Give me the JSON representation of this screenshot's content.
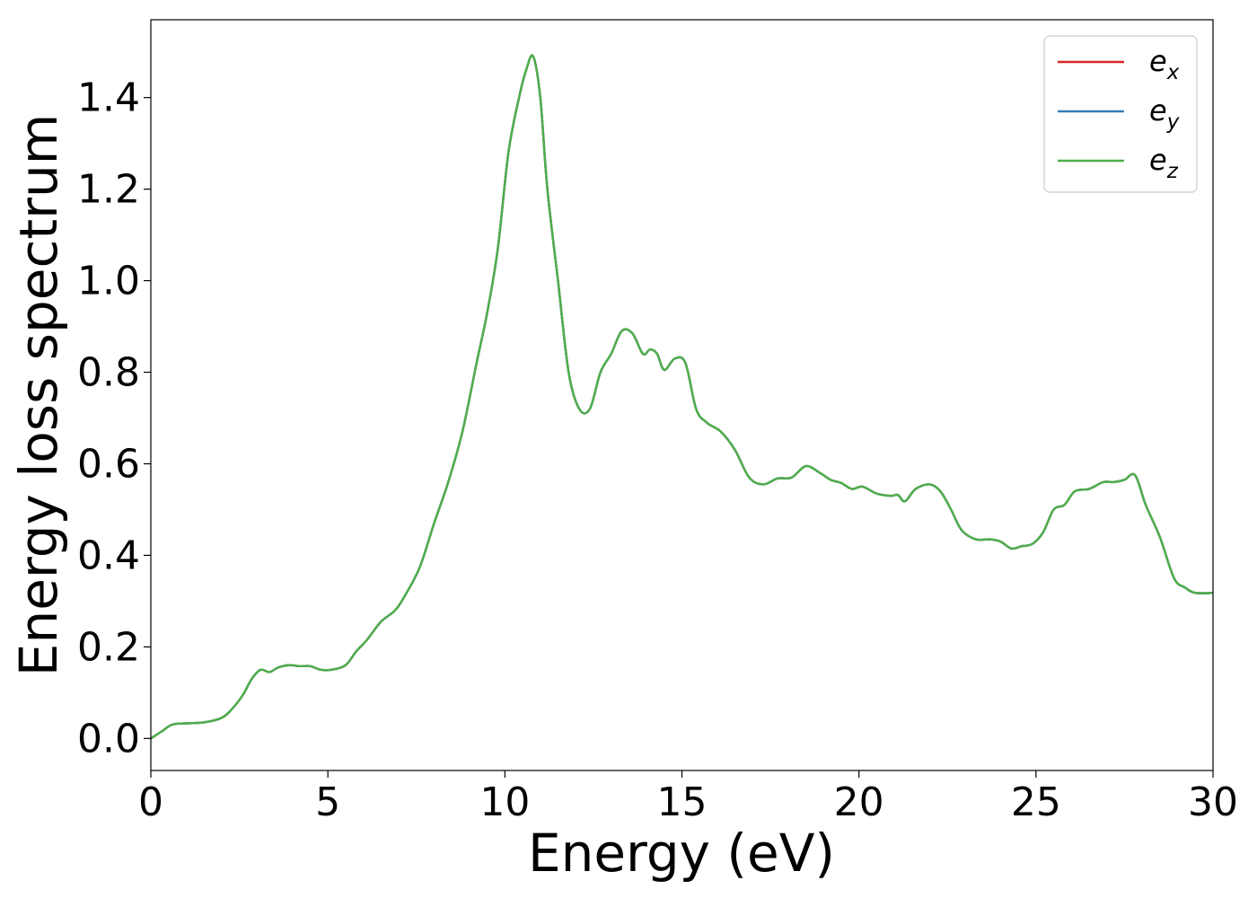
{
  "chart_data": {
    "type": "line",
    "title": "",
    "xlabel": "Energy (eV)",
    "ylabel": "Energy loss spectrum",
    "xlim": [
      0,
      30
    ],
    "ylim": [
      -0.07,
      1.57
    ],
    "grid": false,
    "legend_position": "top-right",
    "x_ticks": [
      {
        "value": 0,
        "label": "0"
      },
      {
        "value": 5,
        "label": "5"
      },
      {
        "value": 10,
        "label": "10"
      },
      {
        "value": 15,
        "label": "15"
      },
      {
        "value": 20,
        "label": "20"
      },
      {
        "value": 25,
        "label": "25"
      },
      {
        "value": 30,
        "label": "30"
      }
    ],
    "y_ticks": [
      {
        "value": 0.0,
        "label": "0.0"
      },
      {
        "value": 0.2,
        "label": "0.2"
      },
      {
        "value": 0.4,
        "label": "0.4"
      },
      {
        "value": 0.6,
        "label": "0.6"
      },
      {
        "value": 0.8,
        "label": "0.8"
      },
      {
        "value": 1.0,
        "label": "1.0"
      },
      {
        "value": 1.2,
        "label": "1.2"
      },
      {
        "value": 1.4,
        "label": "1.4"
      }
    ],
    "x": [
      0,
      0.3,
      0.6,
      1.0,
      1.5,
      2.0,
      2.3,
      2.6,
      2.85,
      3.1,
      3.35,
      3.6,
      3.9,
      4.2,
      4.5,
      4.8,
      5.1,
      5.5,
      5.8,
      6.1,
      6.5,
      6.9,
      7.2,
      7.6,
      8.0,
      8.4,
      8.8,
      9.2,
      9.5,
      9.8,
      10.1,
      10.4,
      10.6,
      10.8,
      11.0,
      11.2,
      11.5,
      11.8,
      12.1,
      12.4,
      12.7,
      13.0,
      13.3,
      13.6,
      13.9,
      14.1,
      14.3,
      14.5,
      14.8,
      15.1,
      15.4,
      15.7,
      16.1,
      16.5,
      16.9,
      17.3,
      17.7,
      18.1,
      18.5,
      18.9,
      19.2,
      19.5,
      19.8,
      20.1,
      20.5,
      20.9,
      21.1,
      21.3,
      21.6,
      22.0,
      22.3,
      22.6,
      22.9,
      23.3,
      23.7,
      24.0,
      24.3,
      24.6,
      24.9,
      25.2,
      25.5,
      25.8,
      26.1,
      26.5,
      26.9,
      27.2,
      27.5,
      27.8,
      28.1,
      28.5,
      28.9,
      29.2,
      29.5,
      30.0
    ],
    "series": [
      {
        "name": "e_x",
        "name_base": "e",
        "name_sub": "x",
        "color": "#d62728",
        "values": [
          0.0,
          0.015,
          0.03,
          0.033,
          0.035,
          0.045,
          0.065,
          0.095,
          0.13,
          0.15,
          0.145,
          0.155,
          0.16,
          0.158,
          0.158,
          0.15,
          0.15,
          0.16,
          0.19,
          0.215,
          0.255,
          0.28,
          0.315,
          0.375,
          0.47,
          0.56,
          0.67,
          0.82,
          0.93,
          1.07,
          1.28,
          1.4,
          1.46,
          1.49,
          1.4,
          1.2,
          1.0,
          0.8,
          0.72,
          0.72,
          0.8,
          0.84,
          0.89,
          0.885,
          0.84,
          0.85,
          0.84,
          0.805,
          0.83,
          0.82,
          0.72,
          0.69,
          0.67,
          0.63,
          0.57,
          0.555,
          0.568,
          0.57,
          0.595,
          0.58,
          0.565,
          0.558,
          0.545,
          0.55,
          0.535,
          0.53,
          0.532,
          0.518,
          0.545,
          0.555,
          0.54,
          0.5,
          0.455,
          0.435,
          0.435,
          0.43,
          0.415,
          0.42,
          0.425,
          0.45,
          0.5,
          0.51,
          0.54,
          0.545,
          0.56,
          0.56,
          0.565,
          0.575,
          0.51,
          0.44,
          0.35,
          0.33,
          0.318,
          0.318
        ]
      },
      {
        "name": "e_y",
        "name_base": "e",
        "name_sub": "y",
        "color": "#377eb8",
        "values": [
          0.0,
          0.015,
          0.03,
          0.033,
          0.035,
          0.045,
          0.065,
          0.095,
          0.13,
          0.15,
          0.145,
          0.155,
          0.16,
          0.158,
          0.158,
          0.15,
          0.15,
          0.16,
          0.19,
          0.215,
          0.255,
          0.28,
          0.315,
          0.375,
          0.47,
          0.56,
          0.67,
          0.82,
          0.93,
          1.07,
          1.28,
          1.4,
          1.46,
          1.49,
          1.4,
          1.2,
          1.0,
          0.8,
          0.72,
          0.72,
          0.8,
          0.84,
          0.89,
          0.885,
          0.84,
          0.85,
          0.84,
          0.805,
          0.83,
          0.82,
          0.72,
          0.69,
          0.67,
          0.63,
          0.57,
          0.555,
          0.568,
          0.57,
          0.595,
          0.58,
          0.565,
          0.558,
          0.545,
          0.55,
          0.535,
          0.53,
          0.532,
          0.518,
          0.545,
          0.555,
          0.54,
          0.5,
          0.455,
          0.435,
          0.435,
          0.43,
          0.415,
          0.42,
          0.425,
          0.45,
          0.5,
          0.51,
          0.54,
          0.545,
          0.56,
          0.56,
          0.565,
          0.575,
          0.51,
          0.44,
          0.35,
          0.33,
          0.318,
          0.318
        ]
      },
      {
        "name": "e_z",
        "name_base": "e",
        "name_sub": "z",
        "color": "#4daf4a",
        "values": [
          0.0,
          0.015,
          0.03,
          0.033,
          0.035,
          0.045,
          0.065,
          0.095,
          0.13,
          0.15,
          0.145,
          0.155,
          0.16,
          0.158,
          0.158,
          0.15,
          0.15,
          0.16,
          0.19,
          0.215,
          0.255,
          0.28,
          0.315,
          0.375,
          0.47,
          0.56,
          0.67,
          0.82,
          0.93,
          1.07,
          1.28,
          1.4,
          1.46,
          1.49,
          1.4,
          1.2,
          1.0,
          0.8,
          0.72,
          0.72,
          0.8,
          0.84,
          0.89,
          0.885,
          0.84,
          0.85,
          0.84,
          0.805,
          0.83,
          0.82,
          0.72,
          0.69,
          0.67,
          0.63,
          0.57,
          0.555,
          0.568,
          0.57,
          0.595,
          0.58,
          0.565,
          0.558,
          0.545,
          0.55,
          0.535,
          0.53,
          0.532,
          0.518,
          0.545,
          0.555,
          0.54,
          0.5,
          0.455,
          0.435,
          0.435,
          0.43,
          0.415,
          0.42,
          0.425,
          0.45,
          0.5,
          0.51,
          0.54,
          0.545,
          0.56,
          0.56,
          0.565,
          0.575,
          0.51,
          0.44,
          0.35,
          0.33,
          0.318,
          0.318
        ]
      }
    ]
  }
}
